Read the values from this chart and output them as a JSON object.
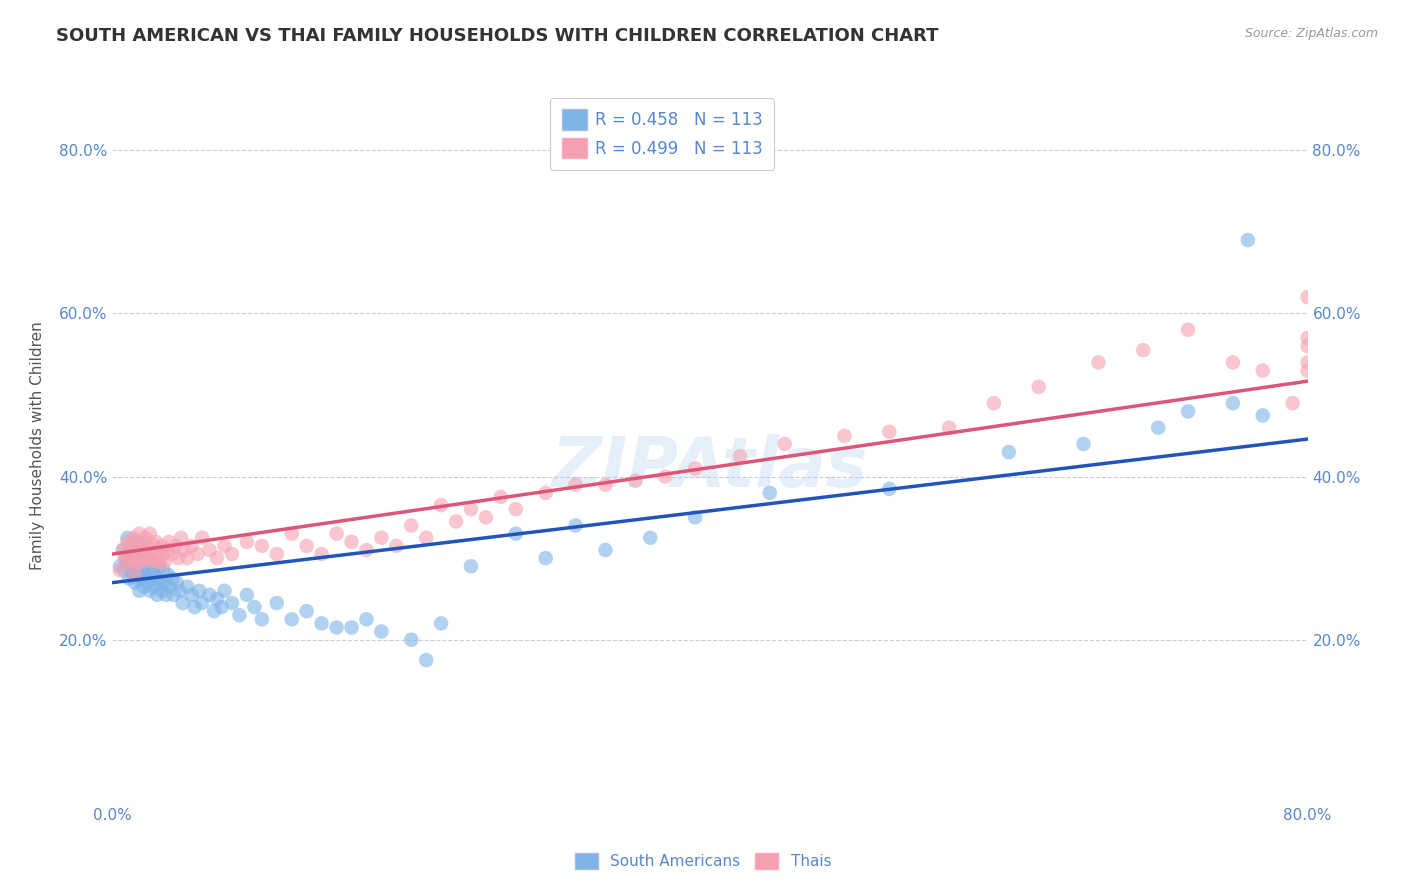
{
  "title": "SOUTH AMERICAN VS THAI FAMILY HOUSEHOLDS WITH CHILDREN CORRELATION CHART",
  "source": "Source: ZipAtlas.com",
  "ylabel": "Family Households with Children",
  "xlim": [
    0.0,
    0.8
  ],
  "ylim": [
    0.0,
    0.875
  ],
  "yticks": [
    0.2,
    0.4,
    0.6,
    0.8
  ],
  "xticks": [
    0.0,
    0.1,
    0.2,
    0.3,
    0.4,
    0.5,
    0.6,
    0.7,
    0.8
  ],
  "xtick_labels_show": [
    "0.0%",
    "80.0%"
  ],
  "ytick_labels": [
    "20.0%",
    "40.0%",
    "60.0%",
    "80.0%"
  ],
  "blue_R": 0.458,
  "blue_N": 113,
  "pink_R": 0.499,
  "pink_N": 113,
  "blue_color": "#7EB3E8",
  "pink_color": "#F5A0B0",
  "blue_line_color": "#2255BB",
  "pink_line_color": "#DD5577",
  "grid_color": "#CCCCDD",
  "bg_color": "#FFFFFF",
  "watermark": "ZIPAtlas",
  "title_fontsize": 13,
  "axis_label_fontsize": 11,
  "tick_fontsize": 11,
  "legend_fontsize": 12,
  "blue_line_intercept": 0.27,
  "blue_line_slope": 0.22,
  "pink_line_intercept": 0.305,
  "pink_line_slope": 0.265,
  "blue_scatter_x": [
    0.005,
    0.007,
    0.008,
    0.009,
    0.01,
    0.01,
    0.011,
    0.012,
    0.012,
    0.013,
    0.014,
    0.015,
    0.015,
    0.016,
    0.016,
    0.017,
    0.017,
    0.018,
    0.018,
    0.019,
    0.019,
    0.02,
    0.02,
    0.021,
    0.021,
    0.022,
    0.022,
    0.023,
    0.023,
    0.024,
    0.025,
    0.025,
    0.026,
    0.027,
    0.028,
    0.028,
    0.03,
    0.03,
    0.031,
    0.032,
    0.033,
    0.034,
    0.035,
    0.036,
    0.037,
    0.038,
    0.04,
    0.041,
    0.043,
    0.045,
    0.047,
    0.05,
    0.053,
    0.055,
    0.058,
    0.06,
    0.065,
    0.068,
    0.07,
    0.073,
    0.075,
    0.08,
    0.085,
    0.09,
    0.095,
    0.1,
    0.11,
    0.12,
    0.13,
    0.14,
    0.15,
    0.16,
    0.17,
    0.18,
    0.2,
    0.21,
    0.22,
    0.24,
    0.27,
    0.29,
    0.31,
    0.33,
    0.36,
    0.39,
    0.44,
    0.52,
    0.6,
    0.65,
    0.7,
    0.72,
    0.75,
    0.76,
    0.77
  ],
  "blue_scatter_y": [
    0.29,
    0.31,
    0.285,
    0.3,
    0.325,
    0.295,
    0.275,
    0.31,
    0.285,
    0.295,
    0.28,
    0.305,
    0.27,
    0.3,
    0.285,
    0.32,
    0.275,
    0.295,
    0.26,
    0.28,
    0.305,
    0.275,
    0.3,
    0.285,
    0.265,
    0.31,
    0.28,
    0.295,
    0.27,
    0.285,
    0.26,
    0.3,
    0.275,
    0.29,
    0.265,
    0.28,
    0.275,
    0.255,
    0.29,
    0.27,
    0.26,
    0.285,
    0.27,
    0.255,
    0.28,
    0.265,
    0.275,
    0.255,
    0.27,
    0.26,
    0.245,
    0.265,
    0.255,
    0.24,
    0.26,
    0.245,
    0.255,
    0.235,
    0.25,
    0.24,
    0.26,
    0.245,
    0.23,
    0.255,
    0.24,
    0.225,
    0.245,
    0.225,
    0.235,
    0.22,
    0.215,
    0.215,
    0.225,
    0.21,
    0.2,
    0.175,
    0.22,
    0.29,
    0.33,
    0.3,
    0.34,
    0.31,
    0.325,
    0.35,
    0.38,
    0.385,
    0.43,
    0.44,
    0.46,
    0.48,
    0.49,
    0.69,
    0.475
  ],
  "pink_scatter_x": [
    0.005,
    0.007,
    0.008,
    0.01,
    0.01,
    0.011,
    0.012,
    0.013,
    0.014,
    0.015,
    0.015,
    0.016,
    0.017,
    0.018,
    0.018,
    0.019,
    0.02,
    0.02,
    0.021,
    0.022,
    0.022,
    0.023,
    0.024,
    0.025,
    0.025,
    0.026,
    0.027,
    0.028,
    0.029,
    0.03,
    0.031,
    0.032,
    0.033,
    0.034,
    0.035,
    0.037,
    0.038,
    0.04,
    0.042,
    0.044,
    0.046,
    0.048,
    0.05,
    0.053,
    0.057,
    0.06,
    0.065,
    0.07,
    0.075,
    0.08,
    0.09,
    0.1,
    0.11,
    0.12,
    0.13,
    0.14,
    0.15,
    0.16,
    0.17,
    0.18,
    0.19,
    0.2,
    0.21,
    0.22,
    0.23,
    0.24,
    0.25,
    0.26,
    0.27,
    0.29,
    0.31,
    0.33,
    0.35,
    0.37,
    0.39,
    0.42,
    0.45,
    0.49,
    0.52,
    0.56,
    0.59,
    0.62,
    0.66,
    0.69,
    0.72,
    0.75,
    0.77,
    0.79,
    0.8,
    0.8,
    0.8,
    0.8,
    0.8
  ],
  "pink_scatter_y": [
    0.285,
    0.31,
    0.3,
    0.32,
    0.295,
    0.305,
    0.315,
    0.295,
    0.325,
    0.3,
    0.28,
    0.315,
    0.295,
    0.31,
    0.33,
    0.305,
    0.295,
    0.32,
    0.305,
    0.325,
    0.3,
    0.315,
    0.3,
    0.33,
    0.31,
    0.3,
    0.315,
    0.295,
    0.32,
    0.305,
    0.31,
    0.295,
    0.315,
    0.305,
    0.295,
    0.31,
    0.32,
    0.305,
    0.315,
    0.3,
    0.325,
    0.31,
    0.3,
    0.315,
    0.305,
    0.325,
    0.31,
    0.3,
    0.315,
    0.305,
    0.32,
    0.315,
    0.305,
    0.33,
    0.315,
    0.305,
    0.33,
    0.32,
    0.31,
    0.325,
    0.315,
    0.34,
    0.325,
    0.365,
    0.345,
    0.36,
    0.35,
    0.375,
    0.36,
    0.38,
    0.39,
    0.39,
    0.395,
    0.4,
    0.41,
    0.425,
    0.44,
    0.45,
    0.455,
    0.46,
    0.49,
    0.51,
    0.54,
    0.555,
    0.58,
    0.54,
    0.53,
    0.49,
    0.56,
    0.54,
    0.57,
    0.53,
    0.62
  ]
}
